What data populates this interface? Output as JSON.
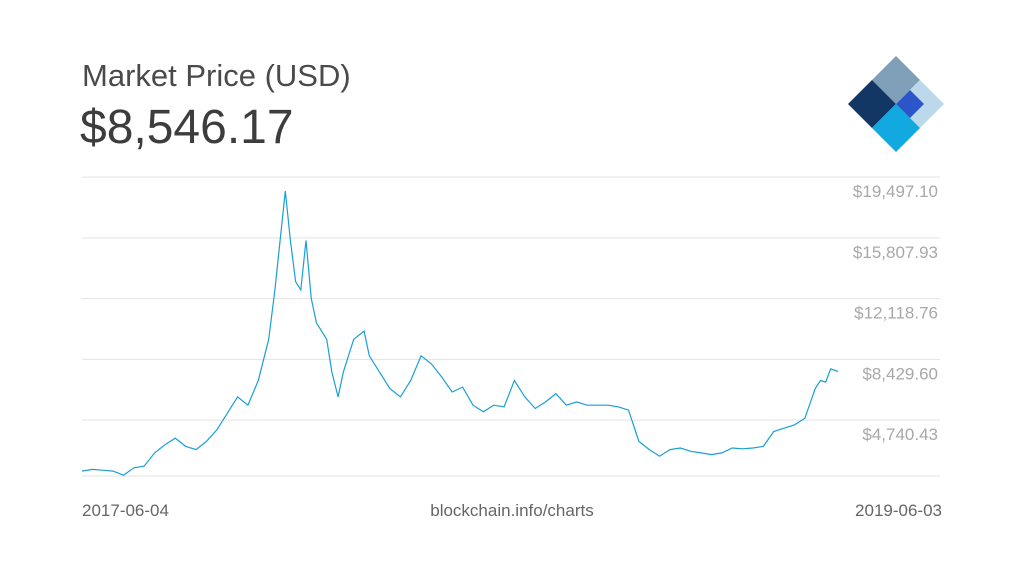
{
  "header": {
    "title": "Market Price (USD)",
    "current_price": "$8,546.17"
  },
  "footer": {
    "start_date": "2017-06-04",
    "source": "blockchain.info/charts",
    "end_date": "2019-06-03"
  },
  "logo": {
    "icon": "blockchain-diamond-logo",
    "colors": [
      "#123765",
      "#7fa0b8",
      "#2c55c9",
      "#bcd8eb",
      "#12a8e0"
    ]
  },
  "colors": {
    "line": "#1a9fd5",
    "grid": "#e3e3e3",
    "tick": "#a8a8a8"
  },
  "chart_data": {
    "type": "line",
    "title": "Market Price (USD)",
    "xlabel": "",
    "ylabel": "",
    "grid": true,
    "y_ticks": [
      19497.1,
      15807.93,
      12118.76,
      8429.6,
      4740.43
    ],
    "y_tick_labels": [
      "$19,497.10",
      "$15,807.93",
      "$12,118.76",
      "$8,429.60",
      "$4,740.43"
    ],
    "ylim": [
      2200,
      20900
    ],
    "xlim": [
      "2017-06-04",
      "2019-06-03"
    ],
    "series": [
      {
        "x": [
          "2017-06-04",
          "2017-06-14",
          "2017-06-24",
          "2017-07-04",
          "2017-07-14",
          "2017-07-24",
          "2017-08-03",
          "2017-08-13",
          "2017-08-23",
          "2017-09-02",
          "2017-09-12",
          "2017-09-22",
          "2017-10-02",
          "2017-10-12",
          "2017-10-22",
          "2017-11-01",
          "2017-11-11",
          "2017-11-21",
          "2017-12-01",
          "2017-12-07",
          "2017-12-12",
          "2017-12-17",
          "2017-12-22",
          "2017-12-27",
          "2018-01-01",
          "2018-01-06",
          "2018-01-11",
          "2018-01-16",
          "2018-01-21",
          "2018-01-26",
          "2018-01-31",
          "2018-02-06",
          "2018-02-11",
          "2018-02-21",
          "2018-03-03",
          "2018-03-08",
          "2018-03-18",
          "2018-03-28",
          "2018-04-07",
          "2018-04-17",
          "2018-04-27",
          "2018-05-07",
          "2018-05-17",
          "2018-05-27",
          "2018-06-06",
          "2018-06-16",
          "2018-06-26",
          "2018-07-06",
          "2018-07-16",
          "2018-07-26",
          "2018-08-05",
          "2018-08-15",
          "2018-08-25",
          "2018-09-04",
          "2018-09-14",
          "2018-09-24",
          "2018-10-04",
          "2018-10-14",
          "2018-10-24",
          "2018-11-03",
          "2018-11-13",
          "2018-11-23",
          "2018-12-03",
          "2018-12-13",
          "2018-12-23",
          "2019-01-02",
          "2019-01-12",
          "2019-01-22",
          "2019-02-01",
          "2019-02-11",
          "2019-02-21",
          "2019-03-03",
          "2019-03-13",
          "2019-03-23",
          "2019-04-02",
          "2019-04-12",
          "2019-04-22",
          "2019-05-02",
          "2019-05-12",
          "2019-05-17",
          "2019-05-22",
          "2019-05-27",
          "2019-06-03"
        ],
        "values": [
          2500,
          2600,
          2550,
          2500,
          2250,
          2700,
          2800,
          3600,
          4100,
          4500,
          4000,
          3800,
          4300,
          5000,
          6000,
          7000,
          6500,
          8000,
          10500,
          13500,
          16500,
          19500,
          16500,
          14000,
          13500,
          16500,
          13000,
          11500,
          11000,
          10500,
          8500,
          7000,
          8500,
          10500,
          11000,
          9500,
          8500,
          7500,
          7000,
          8000,
          9500,
          9000,
          8200,
          7300,
          7600,
          6500,
          6100,
          6500,
          6400,
          8000,
          7000,
          6300,
          6700,
          7200,
          6500,
          6700,
          6500,
          6500,
          6500,
          6400,
          6200,
          4300,
          3800,
          3400,
          3800,
          3900,
          3700,
          3600,
          3500,
          3600,
          3900,
          3850,
          3900,
          4000,
          4900,
          5100,
          5300,
          5700,
          7500,
          8000,
          7900,
          8700,
          8546
        ]
      }
    ]
  }
}
